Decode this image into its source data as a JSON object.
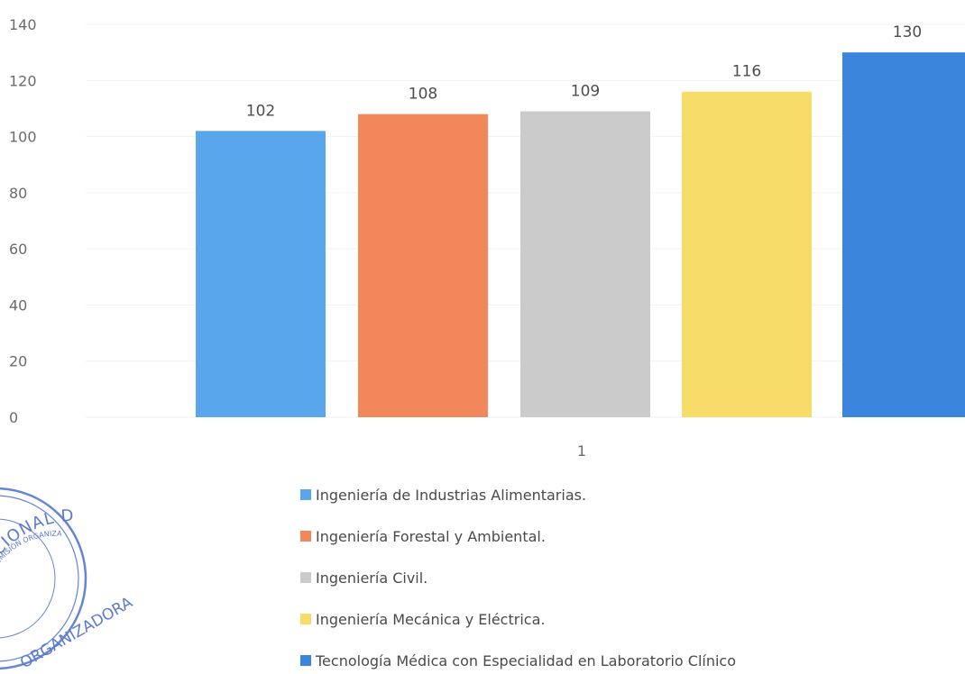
{
  "chart_data": {
    "type": "bar",
    "categories": [
      "1"
    ],
    "series": [
      {
        "name": "Ingeniería de Industrias Alimentarias.",
        "values": [
          102
        ],
        "color": "#5aa6ec"
      },
      {
        "name": "Ingeniería Forestal y Ambiental.",
        "values": [
          108
        ],
        "color": "#f2875c"
      },
      {
        "name": "Ingeniería Civil.",
        "values": [
          109
        ],
        "color": "#cbcbcb"
      },
      {
        "name": "Ingeniería Mecánica y Eléctrica.",
        "values": [
          116
        ],
        "color": "#f8dc6a"
      },
      {
        "name": "Tecnología Médica con Especialidad en Laboratorio Clínico",
        "values": [
          130
        ],
        "color": "#3b86dc"
      }
    ],
    "ylim": [
      0,
      140
    ],
    "yticks": [
      "0",
      "20",
      "40",
      "60",
      "80",
      "100",
      "120",
      "140"
    ],
    "data_labels": [
      "102",
      "108",
      "109",
      "116",
      "130"
    ],
    "grid": true,
    "legend_position": "bottom"
  },
  "stamp": {
    "outer_text": "NACIONAL DE JAÉN",
    "lower_text": "ORGANIZADORA",
    "inner_text": "COMISIÓN ORGANIZADORA",
    "color": "#3f63c9"
  }
}
